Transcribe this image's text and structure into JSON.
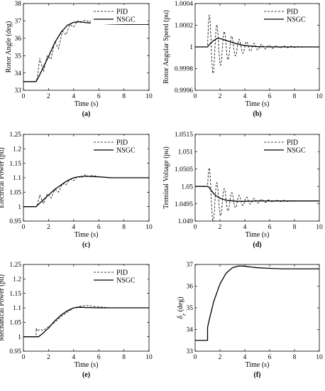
{
  "chart_data": [
    {
      "type": "line",
      "caption": "(a)",
      "xlabel": "Time (s)",
      "ylabel": "Rotor Angle (deg)",
      "xlim": [
        0,
        10
      ],
      "ylim": [
        33,
        38
      ],
      "xticks": [
        "0",
        "2",
        "4",
        "6",
        "8",
        "10"
      ],
      "yticks": [
        "33",
        "34",
        "35",
        "36",
        "37",
        "38"
      ],
      "legend": "top-right",
      "series": [
        {
          "name": "PID",
          "style": "dashed",
          "x": [
            0,
            1.0,
            1.1,
            1.3,
            1.6,
            1.9,
            2.2,
            2.5,
            2.8,
            3.1,
            3.4,
            3.7,
            4.0,
            4.3,
            4.6,
            4.9,
            5.2,
            5.5,
            5.8,
            6.2,
            6.6,
            7.0,
            8.0,
            9.0,
            10.0
          ],
          "y": [
            33.5,
            33.5,
            33.7,
            34.85,
            34.1,
            35.0,
            34.8,
            35.8,
            35.4,
            36.4,
            36.2,
            36.8,
            36.65,
            37.0,
            36.9,
            37.05,
            36.95,
            37.05,
            36.95,
            37.0,
            36.92,
            36.9,
            36.85,
            36.82,
            36.8
          ]
        },
        {
          "name": "NSGC",
          "style": "solid",
          "x": [
            0,
            1.0,
            1.2,
            1.5,
            2.0,
            2.5,
            3.0,
            3.5,
            4.0,
            4.5,
            5.0,
            6.0,
            7.0,
            8.0,
            10.0
          ],
          "y": [
            33.5,
            33.5,
            33.75,
            34.2,
            34.95,
            35.75,
            36.35,
            36.75,
            36.92,
            36.95,
            36.9,
            36.85,
            36.82,
            36.8,
            36.8
          ]
        }
      ]
    },
    {
      "type": "line",
      "caption": "(b)",
      "xlabel": "Time (s)",
      "ylabel": "Rotor Angular Speed (pu)",
      "xlim": [
        0,
        10
      ],
      "ylim": [
        0.9996,
        1.0004
      ],
      "xticks": [
        "0",
        "2",
        "4",
        "6",
        "8",
        "10"
      ],
      "yticks": [
        "0.9996",
        "0.9998",
        "1",
        "1.0002",
        "1.0004"
      ],
      "legend": "top-right",
      "series": [
        {
          "name": "PID",
          "style": "dashed",
          "kind": "oscillation",
          "t0": 1.0,
          "baseline": 1.0,
          "amplitude": 0.00032,
          "decay": 0.6,
          "period": 0.6
        },
        {
          "name": "NSGC",
          "style": "solid",
          "x": [
            0,
            1.0,
            1.2,
            1.5,
            1.8,
            2.0,
            2.5,
            3.0,
            3.5,
            4.0,
            5.0,
            6.0,
            8.0,
            10.0
          ],
          "y": [
            1.0,
            1.0,
            1.00003,
            1.00006,
            1.00008,
            1.000078,
            1.00006,
            1.00004,
            1.000025,
            1.000012,
            1.000003,
            1.0,
            1.0,
            1.0
          ]
        }
      ]
    },
    {
      "type": "line",
      "caption": "(c)",
      "xlabel": "Time (s)",
      "ylabel": "Electrical Power (pu)",
      "xlim": [
        0,
        10
      ],
      "ylim": [
        0.95,
        1.25
      ],
      "xticks": [
        "0",
        "2",
        "4",
        "6",
        "8",
        "10"
      ],
      "yticks": [
        "0.95",
        "1",
        "1.05",
        "1.1",
        "1.15",
        "1.2",
        "1.25"
      ],
      "legend": "top-right",
      "series": [
        {
          "name": "PID",
          "style": "dashed",
          "x": [
            0,
            1.0,
            1.1,
            1.3,
            1.6,
            1.9,
            2.2,
            2.5,
            2.8,
            3.1,
            3.4,
            3.7,
            4.0,
            4.3,
            4.6,
            4.9,
            5.2,
            5.5,
            6.0,
            7.0,
            8.0,
            10.0
          ],
          "y": [
            1.0,
            1.0,
            1.005,
            1.04,
            1.01,
            1.045,
            1.03,
            1.06,
            1.05,
            1.08,
            1.075,
            1.095,
            1.09,
            1.105,
            1.1,
            1.11,
            1.105,
            1.108,
            1.104,
            1.1,
            1.1,
            1.1
          ]
        },
        {
          "name": "NSGC",
          "style": "solid",
          "x": [
            0,
            1.0,
            1.2,
            1.5,
            2.0,
            2.5,
            3.0,
            3.5,
            4.0,
            4.5,
            5.0,
            6.0,
            7.0,
            10.0
          ],
          "y": [
            1.0,
            1.0,
            1.008,
            1.02,
            1.04,
            1.06,
            1.075,
            1.09,
            1.1,
            1.104,
            1.105,
            1.103,
            1.1,
            1.1
          ]
        }
      ]
    },
    {
      "type": "line",
      "caption": "(d)",
      "xlabel": "Time (s)",
      "ylabel": "Terminal Voltage (pu)",
      "xlim": [
        0,
        10
      ],
      "ylim": [
        1.049,
        1.0515
      ],
      "xticks": [
        "0",
        "2",
        "4",
        "6",
        "8",
        "10"
      ],
      "yticks": [
        "1.049",
        "1.0495",
        "1.05",
        "1.0505",
        "1.051",
        "1.0515"
      ],
      "legend": "top-right",
      "series": [
        {
          "name": "PID",
          "style": "dashed",
          "kind": "oscillation",
          "t0": 1.0,
          "baseline": 1.04958,
          "start": 1.05,
          "amplitude": 0.00085,
          "decay": 0.65,
          "period": 0.6
        },
        {
          "name": "NSGC",
          "style": "solid",
          "x": [
            0,
            1.0,
            1.1,
            1.3,
            1.6,
            2.0,
            2.5,
            3.0,
            3.5,
            4.0,
            5.0,
            6.0,
            8.0,
            10.0
          ],
          "y": [
            1.05,
            1.05,
            1.04998,
            1.04988,
            1.04975,
            1.04966,
            1.0496,
            1.04958,
            1.04957,
            1.04957,
            1.04958,
            1.04958,
            1.04958,
            1.04958
          ]
        }
      ]
    },
    {
      "type": "line",
      "caption": "(e)",
      "xlabel": "Time (s)",
      "ylabel": "Mechanical Power (pu)",
      "xlim": [
        0,
        10
      ],
      "ylim": [
        0.95,
        1.25
      ],
      "xticks": [
        "0",
        "2",
        "4",
        "6",
        "8",
        "10"
      ],
      "yticks": [
        "0.95",
        "1",
        "1.05",
        "1.1",
        "1.15",
        "1.2",
        "1.25"
      ],
      "legend": "top-right",
      "series": [
        {
          "name": "PID",
          "style": "dashed",
          "x": [
            0,
            1.0,
            1.02,
            1.1,
            1.3,
            1.6,
            2.0,
            2.5,
            3.0,
            3.5,
            4.0,
            4.5,
            5.0,
            5.5,
            6.0,
            7.0,
            10.0
          ],
          "y": [
            1.0,
            1.0,
            1.03,
            1.02,
            1.025,
            1.022,
            1.035,
            1.05,
            1.07,
            1.085,
            1.1,
            1.105,
            1.108,
            1.105,
            1.103,
            1.1,
            1.1
          ]
        },
        {
          "name": "NSGC",
          "style": "solid",
          "x": [
            0,
            1.0,
            1.2,
            1.5,
            2.0,
            2.5,
            3.0,
            3.5,
            4.0,
            4.5,
            5.0,
            6.0,
            7.0,
            10.0
          ],
          "y": [
            1.0,
            1.0,
            1.0,
            1.01,
            1.03,
            1.055,
            1.075,
            1.09,
            1.1,
            1.102,
            1.101,
            1.1,
            1.1,
            1.1
          ]
        }
      ]
    },
    {
      "type": "line",
      "caption": "(f)",
      "xlabel": "Time (s)",
      "ylabel": "δ",
      "ylabel_sub": "r",
      "ylabel_unit": " (deg)",
      "xlim": [
        0,
        10
      ],
      "ylim": [
        33,
        37
      ],
      "xticks": [
        "0",
        "2",
        "4",
        "6",
        "8",
        "10"
      ],
      "yticks": [
        "33",
        "34",
        "35",
        "36",
        "37"
      ],
      "series": [
        {
          "style": "solid",
          "x": [
            0,
            1.0,
            1.0,
            1.2,
            1.5,
            2.0,
            2.5,
            3.0,
            3.5,
            4.0,
            4.5,
            5.0,
            6.0,
            7.0,
            8.0,
            10.0
          ],
          "y": [
            33.5,
            33.5,
            34.1,
            34.6,
            35.3,
            36.1,
            36.6,
            36.85,
            36.93,
            36.92,
            36.88,
            36.85,
            36.82,
            36.8,
            36.8,
            36.8
          ]
        }
      ]
    }
  ]
}
